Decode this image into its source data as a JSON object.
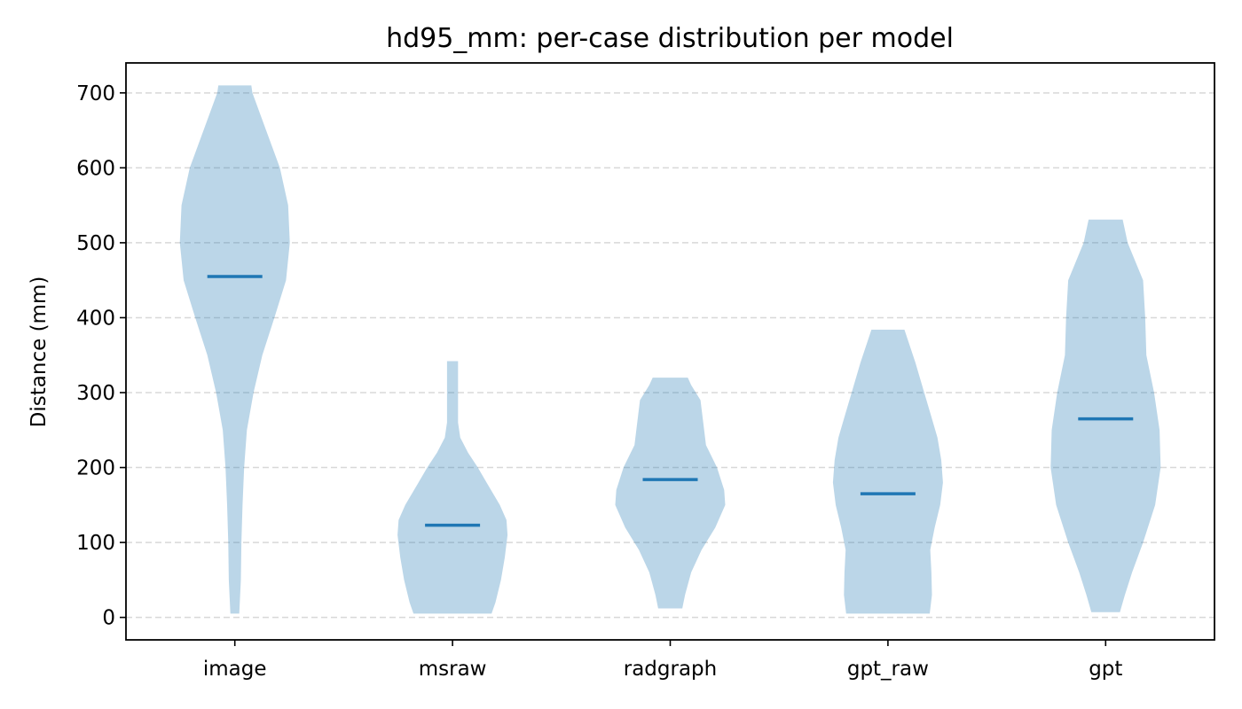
{
  "chart_data": {
    "type": "violin",
    "title": "hd95_mm: per-case distribution per model",
    "xlabel": "",
    "ylabel": "Distance (mm)",
    "ylim": [
      -30,
      740
    ],
    "yticks": [
      0,
      100,
      200,
      300,
      400,
      500,
      600,
      700
    ],
    "y_grid": true,
    "categories": [
      "image",
      "msraw",
      "radgraph",
      "gpt_raw",
      "gpt"
    ],
    "violins": [
      {
        "category": "image",
        "median": 455,
        "min": 5,
        "max": 710,
        "profile": [
          [
            5,
            0.08
          ],
          [
            50,
            0.11
          ],
          [
            100,
            0.12
          ],
          [
            150,
            0.14
          ],
          [
            200,
            0.17
          ],
          [
            250,
            0.22
          ],
          [
            300,
            0.34
          ],
          [
            350,
            0.5
          ],
          [
            400,
            0.72
          ],
          [
            450,
            0.93
          ],
          [
            500,
            1.0
          ],
          [
            550,
            0.97
          ],
          [
            600,
            0.82
          ],
          [
            650,
            0.57
          ],
          [
            700,
            0.32
          ],
          [
            710,
            0.3
          ]
        ]
      },
      {
        "category": "msraw",
        "median": 123,
        "min": 5,
        "max": 342,
        "profile": [
          [
            5,
            0.71
          ],
          [
            20,
            0.78
          ],
          [
            50,
            0.88
          ],
          [
            80,
            0.95
          ],
          [
            110,
            1.0
          ],
          [
            130,
            0.98
          ],
          [
            150,
            0.86
          ],
          [
            180,
            0.62
          ],
          [
            200,
            0.46
          ],
          [
            220,
            0.28
          ],
          [
            240,
            0.14
          ],
          [
            260,
            0.1
          ],
          [
            280,
            0.1
          ],
          [
            300,
            0.1
          ],
          [
            342,
            0.1
          ]
        ]
      },
      {
        "category": "radgraph",
        "median": 184,
        "min": 12,
        "max": 320,
        "profile": [
          [
            12,
            0.22
          ],
          [
            30,
            0.27
          ],
          [
            60,
            0.38
          ],
          [
            90,
            0.57
          ],
          [
            120,
            0.82
          ],
          [
            150,
            1.0
          ],
          [
            170,
            0.98
          ],
          [
            200,
            0.85
          ],
          [
            230,
            0.65
          ],
          [
            260,
            0.6
          ],
          [
            290,
            0.55
          ],
          [
            310,
            0.38
          ],
          [
            320,
            0.32
          ]
        ]
      },
      {
        "category": "gpt_raw",
        "median": 165,
        "min": 5,
        "max": 384,
        "profile": [
          [
            5,
            0.76
          ],
          [
            30,
            0.8
          ],
          [
            60,
            0.79
          ],
          [
            90,
            0.77
          ],
          [
            120,
            0.85
          ],
          [
            150,
            0.95
          ],
          [
            180,
            1.0
          ],
          [
            210,
            0.97
          ],
          [
            240,
            0.9
          ],
          [
            270,
            0.78
          ],
          [
            300,
            0.66
          ],
          [
            340,
            0.5
          ],
          [
            384,
            0.3
          ]
        ]
      },
      {
        "category": "gpt",
        "median": 265,
        "min": 7,
        "max": 531,
        "profile": [
          [
            7,
            0.26
          ],
          [
            30,
            0.35
          ],
          [
            60,
            0.48
          ],
          [
            100,
            0.68
          ],
          [
            150,
            0.9
          ],
          [
            200,
            1.0
          ],
          [
            250,
            0.98
          ],
          [
            300,
            0.88
          ],
          [
            350,
            0.74
          ],
          [
            400,
            0.72
          ],
          [
            450,
            0.68
          ],
          [
            500,
            0.4
          ],
          [
            531,
            0.31
          ]
        ]
      }
    ]
  }
}
